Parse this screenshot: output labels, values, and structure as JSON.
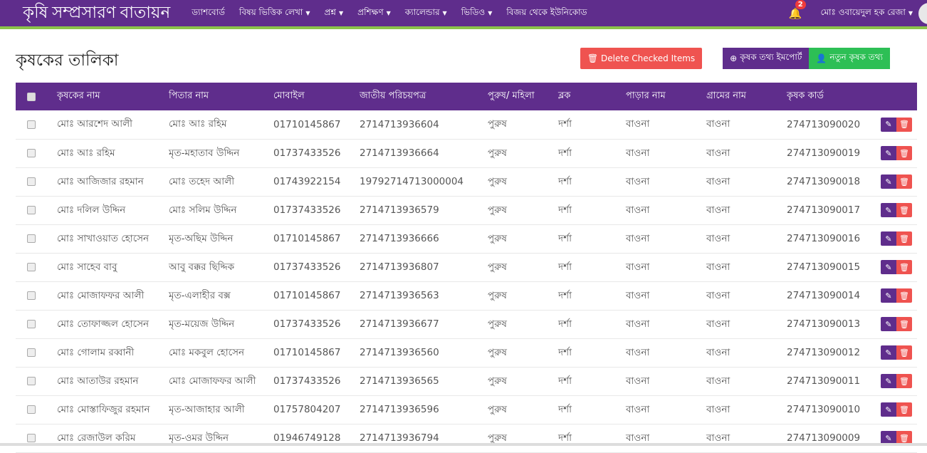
{
  "nav": {
    "brand": "কৃষি সম্প্রসারণ বাতায়ন",
    "items": [
      {
        "label": "ড্যাশবোর্ড",
        "dropdown": false
      },
      {
        "label": "বিষয় ভিত্তিক লেখা",
        "dropdown": true
      },
      {
        "label": "প্রশ্ন",
        "dropdown": true
      },
      {
        "label": "প্রশিক্ষণ",
        "dropdown": true
      },
      {
        "label": "ক্যালেন্ডার",
        "dropdown": true
      },
      {
        "label": "ভিডিও",
        "dropdown": true
      },
      {
        "label": "বিজয় থেকে ইউনিকোড",
        "dropdown": false
      }
    ],
    "notification_count": "2",
    "user": "মোঃ ওবায়েদুল হক রেজা"
  },
  "page": {
    "title": "কৃষকের তালিকা",
    "delete_label": "Delete Checked Items",
    "import_label": "কৃষক তথ্য ইমপোর্ট",
    "new_label": "নতুন কৃষক তথ্য"
  },
  "colors": {
    "primary": "#5f2d8c",
    "accent": "#8bc34a",
    "danger": "#ef5350",
    "success": "#2dbf55"
  },
  "table": {
    "headers": [
      "কৃষকের নাম",
      "পিতার নাম",
      "মোবাইল",
      "জাতীয় পরিচয়পত্র",
      "পুরুষ/ মহিলা",
      "ব্লক",
      "পাড়ার নাম",
      "গ্রামের নাম",
      "কৃষক কার্ড"
    ],
    "rows": [
      [
        "মোঃ আরশেদ আলী",
        "মোঃ আঃ রহিম",
        "01710145867",
        "2714713936604",
        "পুরুষ",
        "দর্শা",
        "বাওনা",
        "বাওনা",
        "274713090020"
      ],
      [
        "মোঃ আঃ রহিম",
        "মৃত-মহাতাব উদ্দিন",
        "01737433526",
        "2714713936664",
        "পুরুষ",
        "দর্শা",
        "বাওনা",
        "বাওনা",
        "274713090019"
      ],
      [
        "মোঃ আজিজার রহমান",
        "মোঃ তহেদ আলী",
        "01743922154",
        "19792714713000004",
        "পুরুষ",
        "দর্শা",
        "বাওনা",
        "বাওনা",
        "274713090018"
      ],
      [
        "মোঃ দলিল উদ্দিন",
        "মোঃ সলিম উদ্দিন",
        "01737433526",
        "2714713936579",
        "পুরুষ",
        "দর্শা",
        "বাওনা",
        "বাওনা",
        "274713090017"
      ],
      [
        "মোঃ সাখাওয়াত হোসেন",
        "মৃত-অছিম উদ্দিন",
        "01710145867",
        "2714713936666",
        "পুরুষ",
        "দর্শা",
        "বাওনা",
        "বাওনা",
        "274713090016"
      ],
      [
        "মোঃ সাহেব বাবু",
        "আবু বক্কর ছিদ্দিক",
        "01737433526",
        "2714713936807",
        "পুরুষ",
        "দর্শা",
        "বাওনা",
        "বাওনা",
        "274713090015"
      ],
      [
        "মোঃ মোজাফফর আলী",
        "মৃত-এলাহীর বক্স",
        "01710145867",
        "2714713936563",
        "পুরুষ",
        "দর্শা",
        "বাওনা",
        "বাওনা",
        "274713090014"
      ],
      [
        "মোঃ তোফাজ্জল হোসেন",
        "মৃত-ময়েজ উদ্দিন",
        "01737433526",
        "2714713936677",
        "পুরুষ",
        "দর্শা",
        "বাওনা",
        "বাওনা",
        "274713090013"
      ],
      [
        "মোঃ গোলাম রব্বানী",
        "মোঃ মকবুল হোসেন",
        "01710145867",
        "2714713936560",
        "পুরুষ",
        "দর্শা",
        "বাওনা",
        "বাওনা",
        "274713090012"
      ],
      [
        "মোঃ আতাউর রহমান",
        "মোঃ মোজাফফর আলী",
        "01737433526",
        "2714713936565",
        "পুরুষ",
        "দর্শা",
        "বাওনা",
        "বাওনা",
        "274713090011"
      ],
      [
        "মোঃ মোস্তাফিজুর রহমান",
        "মৃত-আজাহার আলী",
        "01757804207",
        "2714713936596",
        "পুরুষ",
        "দর্শা",
        "বাওনা",
        "বাওনা",
        "274713090010"
      ],
      [
        "মোঃ রেজাউল করিম",
        "মৃত-ওমর উদ্দিন",
        "01946749128",
        "2714713936794",
        "পুরুষ",
        "দর্শা",
        "বাওনা",
        "বাওনা",
        "274713090009"
      ]
    ]
  }
}
